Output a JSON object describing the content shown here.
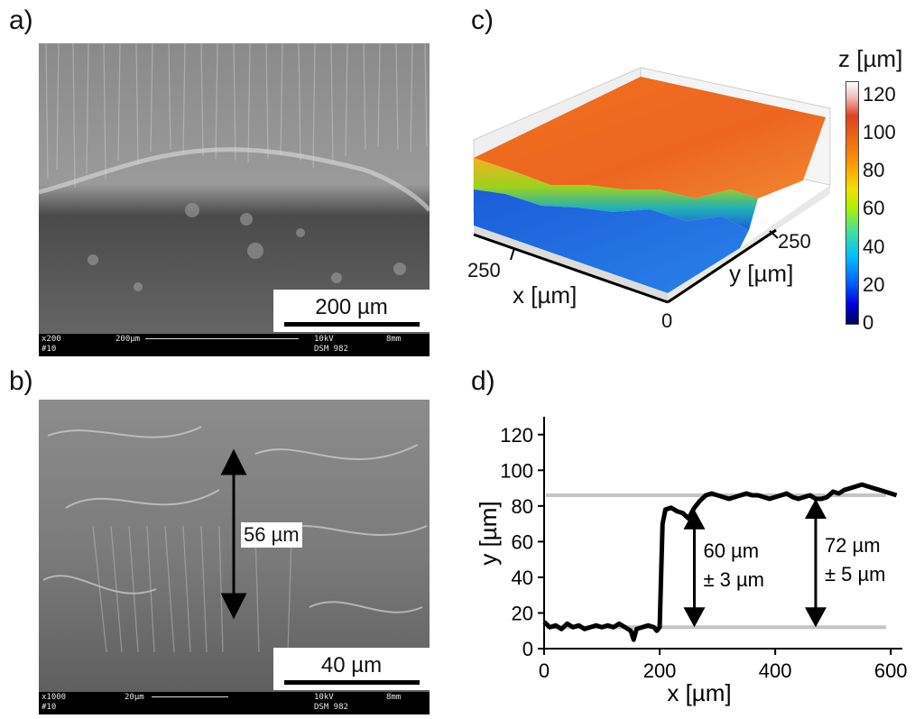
{
  "panels": {
    "a": {
      "label": "a)",
      "scale_text": "200 µm",
      "info": {
        "mag": "x200",
        "sample": "#10",
        "bar": "200µm",
        "kv": "10kV",
        "wd": "8mm",
        "instrument": "DSM 982"
      }
    },
    "b": {
      "label": "b)",
      "scale_text": "40 µm",
      "measure_text": "56 µm",
      "info": {
        "mag": "x1000",
        "sample": "#10",
        "bar": "20µm",
        "kv": "10kV",
        "wd": "8mm",
        "instrument": "DSM 982"
      }
    },
    "c": {
      "label": "c)",
      "colorbar_title": "z [µm]",
      "colorbar_ticks": [
        "0",
        "20",
        "40",
        "60",
        "80",
        "100",
        "120"
      ],
      "x_label": "x [µm]",
      "y_label": "y [µm]",
      "x_tick": "250",
      "y_tick": "250",
      "origin_tick": "0",
      "colors": {
        "low": "#1e66e0",
        "high": "#f06a1e"
      }
    },
    "d": {
      "label": "d)"
    }
  },
  "chart_data": {
    "type": "line",
    "xlabel": "x [µm]",
    "ylabel": "y [µm]",
    "xlim": [
      0,
      620
    ],
    "ylim": [
      0,
      130
    ],
    "xticks": [
      0,
      200,
      400,
      600
    ],
    "yticks": [
      0,
      20,
      40,
      60,
      80,
      100,
      120
    ],
    "x": [
      0,
      10,
      20,
      30,
      40,
      50,
      60,
      70,
      80,
      90,
      100,
      110,
      120,
      130,
      140,
      150,
      155,
      160,
      170,
      180,
      190,
      195,
      200,
      205,
      210,
      220,
      230,
      240,
      250,
      260,
      270,
      280,
      290,
      300,
      310,
      320,
      330,
      340,
      350,
      360,
      370,
      380,
      390,
      400,
      410,
      420,
      430,
      440,
      450,
      460,
      470,
      480,
      490,
      500,
      510,
      520,
      530,
      540,
      550,
      560,
      570,
      580,
      590,
      600,
      610
    ],
    "y": [
      15,
      12,
      13,
      11,
      14,
      12,
      13,
      11,
      12,
      13,
      12,
      13,
      12,
      14,
      12,
      10,
      5,
      11,
      12,
      13,
      12,
      10,
      12,
      70,
      78,
      79,
      77,
      76,
      73,
      79,
      83,
      86,
      87,
      86,
      85,
      84,
      85,
      86,
      87,
      86,
      86,
      85,
      84,
      85,
      86,
      87,
      85,
      84,
      85,
      86,
      84,
      84,
      85,
      88,
      87,
      89,
      90,
      91,
      92,
      91,
      90,
      89,
      88,
      87,
      86
    ],
    "reference_lines": [
      {
        "y": 86
      },
      {
        "y": 12
      }
    ],
    "annotations": [
      {
        "text": "60 µm\n± 3 µm",
        "x": 260,
        "from_y": 12,
        "to_y": 78
      },
      {
        "text": "72 µm\n± 5 µm",
        "x": 470,
        "from_y": 12,
        "to_y": 84
      }
    ]
  }
}
